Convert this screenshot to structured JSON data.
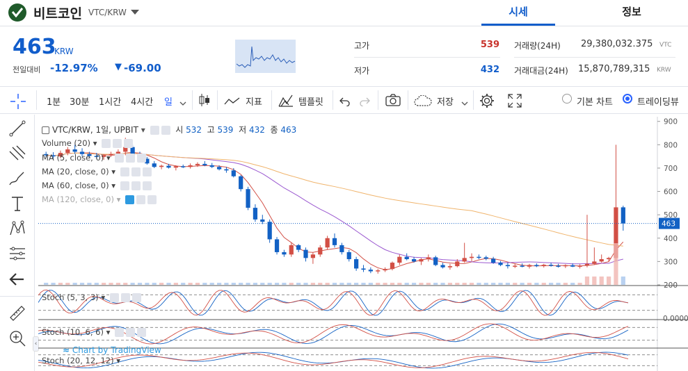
{
  "header": {
    "coin_name": "비트코인",
    "pair": "VTC/KRW",
    "tabs": [
      {
        "label": "시세",
        "active": true
      },
      {
        "label": "정보",
        "active": false
      }
    ]
  },
  "summary": {
    "price": "463",
    "unit": "KRW",
    "change_label": "전일대비",
    "change_rate": "-12.97%",
    "change_arrow": "▼",
    "change_value": "-69.00",
    "high_label": "고가",
    "high": "539",
    "low_label": "저가",
    "low": "432",
    "volume_label": "거래량(24H)",
    "volume": "29,380,032.375",
    "volume_unit": "VTC",
    "amount_label": "거래대금(24H)",
    "amount": "15,870,789,315",
    "amount_unit": "KRW"
  },
  "toolbar": {
    "intervals": [
      "1분",
      "30분",
      "1시간",
      "4시간",
      "일"
    ],
    "active_interval": "일",
    "indicator_label": "지표",
    "template_label": "템플릿",
    "save_label": "저장",
    "basic_chart_label": "기본 차트",
    "tradingview_label": "트레이딩뷰"
  },
  "chart": {
    "legend_title": "VTC/KRW, 1일, UPBIT",
    "ohlc": {
      "o_label": "시",
      "o": "532",
      "h_label": "고",
      "h": "539",
      "l_label": "저",
      "l": "432",
      "c_label": "종",
      "c": "463"
    },
    "indicators": [
      "Volume (20)",
      "MA (5, close, 0)",
      "MA (20, close, 0)",
      "MA (60, close, 0)",
      "MA (120, close, 0)"
    ],
    "price_axis": [
      "900",
      "800",
      "700",
      "600",
      "500",
      "400",
      "300",
      "200"
    ],
    "current_price_tag": "463",
    "stoch_panels": [
      "Stoch (5, 3, 3)",
      "Stoch (10, 6, 6)",
      "Stoch (20, 12, 12)"
    ],
    "stoch_axis_label": "0.0000",
    "watermark": "Chart by TradingView",
    "colors": {
      "up": "#d24f45",
      "down": "#1261c4",
      "ma5": "#d24f45",
      "ma20": "#9b59d0",
      "ma60": "#f0b46c",
      "price_line": "#1261c4"
    }
  },
  "chart_data": {
    "type": "candlestick",
    "ylim": [
      200,
      920
    ],
    "candles": [
      [
        760,
        770,
        745,
        755
      ],
      [
        755,
        768,
        740,
        750
      ],
      [
        750,
        775,
        742,
        765
      ],
      [
        765,
        790,
        755,
        780
      ],
      [
        780,
        800,
        760,
        770
      ],
      [
        770,
        785,
        750,
        760
      ],
      [
        760,
        770,
        745,
        752
      ],
      [
        752,
        765,
        740,
        748
      ],
      [
        748,
        760,
        735,
        755
      ],
      [
        755,
        770,
        748,
        760
      ],
      [
        760,
        780,
        750,
        770
      ],
      [
        770,
        830,
        755,
        790
      ],
      [
        790,
        800,
        750,
        760
      ],
      [
        760,
        770,
        735,
        740
      ],
      [
        740,
        748,
        715,
        720
      ],
      [
        720,
        730,
        700,
        705
      ],
      [
        705,
        715,
        695,
        710
      ],
      [
        710,
        718,
        698,
        702
      ],
      [
        702,
        712,
        690,
        708
      ],
      [
        708,
        715,
        700,
        705
      ],
      [
        705,
        720,
        698,
        712
      ],
      [
        712,
        725,
        705,
        718
      ],
      [
        718,
        730,
        708,
        712
      ],
      [
        712,
        722,
        700,
        705
      ],
      [
        705,
        712,
        690,
        695
      ],
      [
        695,
        705,
        680,
        690
      ],
      [
        690,
        700,
        660,
        665
      ],
      [
        665,
        670,
        600,
        610
      ],
      [
        610,
        620,
        520,
        530
      ],
      [
        530,
        545,
        470,
        480
      ],
      [
        480,
        500,
        460,
        470
      ],
      [
        470,
        480,
        380,
        395
      ],
      [
        395,
        405,
        330,
        340
      ],
      [
        340,
        350,
        320,
        330
      ],
      [
        330,
        380,
        320,
        370
      ],
      [
        370,
        375,
        340,
        350
      ],
      [
        350,
        360,
        300,
        315
      ],
      [
        315,
        340,
        290,
        330
      ],
      [
        330,
        370,
        320,
        360
      ],
      [
        360,
        410,
        350,
        400
      ],
      [
        400,
        420,
        360,
        370
      ],
      [
        370,
        380,
        330,
        340
      ],
      [
        340,
        350,
        300,
        310
      ],
      [
        310,
        320,
        260,
        270
      ],
      [
        270,
        285,
        255,
        265
      ],
      [
        265,
        275,
        250,
        258
      ],
      [
        258,
        268,
        248,
        262
      ],
      [
        262,
        275,
        255,
        268
      ],
      [
        268,
        300,
        262,
        295
      ],
      [
        295,
        330,
        285,
        320
      ],
      [
        320,
        335,
        305,
        310
      ],
      [
        310,
        320,
        295,
        300
      ],
      [
        300,
        315,
        285,
        310
      ],
      [
        310,
        330,
        300,
        318
      ],
      [
        318,
        325,
        280,
        285
      ],
      [
        285,
        295,
        270,
        275
      ],
      [
        275,
        290,
        265,
        280
      ],
      [
        280,
        310,
        275,
        300
      ],
      [
        300,
        380,
        295,
        315
      ],
      [
        315,
        335,
        300,
        320
      ],
      [
        320,
        330,
        310,
        318
      ],
      [
        318,
        325,
        305,
        312
      ],
      [
        312,
        320,
        290,
        295
      ],
      [
        295,
        302,
        280,
        285
      ],
      [
        285,
        295,
        270,
        280
      ],
      [
        280,
        290,
        272,
        282
      ],
      [
        282,
        292,
        275,
        278
      ],
      [
        278,
        290,
        270,
        285
      ],
      [
        285,
        292,
        276,
        280
      ],
      [
        280,
        290,
        274,
        286
      ],
      [
        286,
        295,
        278,
        282
      ],
      [
        282,
        290,
        274,
        280
      ],
      [
        280,
        288,
        272,
        284
      ],
      [
        284,
        292,
        276,
        278
      ],
      [
        278,
        288,
        270,
        282
      ],
      [
        282,
        500,
        275,
        290
      ],
      [
        290,
        360,
        285,
        300
      ],
      [
        300,
        330,
        295,
        310
      ],
      [
        310,
        320,
        298,
        315
      ],
      [
        315,
        800,
        300,
        532
      ],
      [
        532,
        539,
        432,
        463
      ]
    ]
  }
}
